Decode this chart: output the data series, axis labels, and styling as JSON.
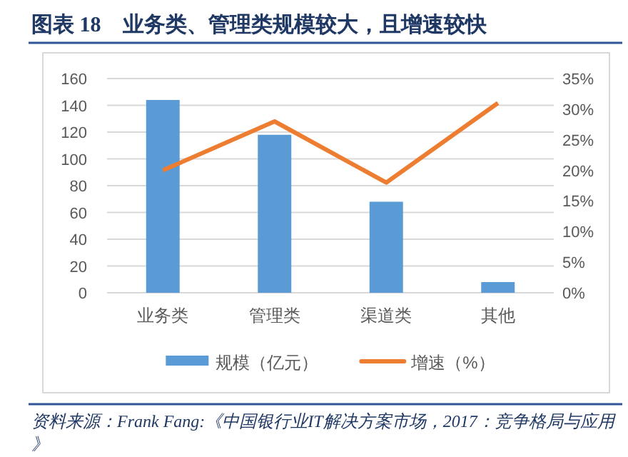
{
  "chart_data": {
    "type": "bar",
    "title": "图表 18　业务类、管理类规模较大，且增速较快",
    "categories": [
      "业务类",
      "管理类",
      "渠道类",
      "其他"
    ],
    "series": [
      {
        "name": "规模（亿元）",
        "color": "#5b9bd5",
        "values": [
          144,
          118,
          68,
          8
        ]
      },
      {
        "name": "增速（%）",
        "type": "line",
        "axis": "y2",
        "color": "#ed7d31",
        "values": [
          20,
          28,
          18,
          31
        ]
      }
    ],
    "ylim": [
      0,
      160
    ],
    "yticks": [
      0,
      20,
      40,
      60,
      80,
      100,
      120,
      140,
      160
    ],
    "y2lim": [
      0,
      35
    ],
    "y2ticks": [
      {
        "value": 0,
        "label": "0%"
      },
      {
        "value": 5,
        "label": "5%"
      },
      {
        "value": 10,
        "label": "10%"
      },
      {
        "value": 15,
        "label": "15%"
      },
      {
        "value": 20,
        "label": "20%"
      },
      {
        "value": 25,
        "label": "25%"
      },
      {
        "value": 30,
        "label": "30%"
      },
      {
        "value": 35,
        "label": "35%"
      }
    ],
    "grid": "y",
    "legend": "bottom",
    "marker": "none",
    "line_style": "solid",
    "annotations": [
      "资料来源：Frank Fang:《中国银行业IT解决方案市场，2017：竞争格局与应用》"
    ]
  }
}
